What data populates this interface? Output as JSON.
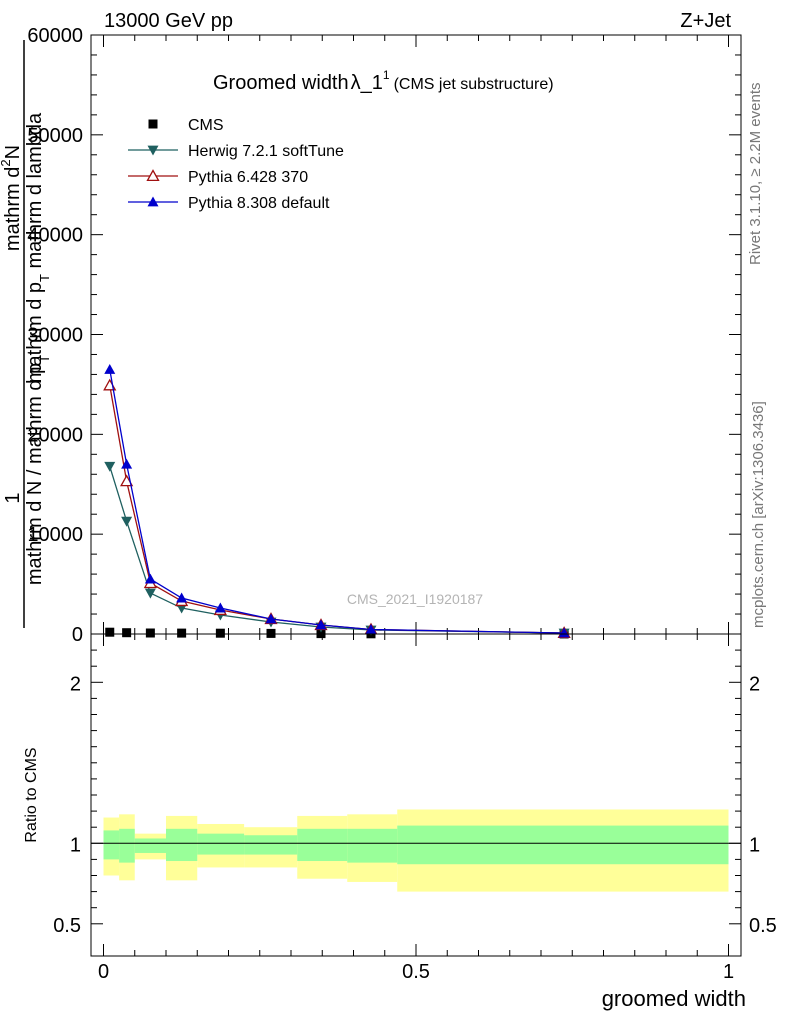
{
  "header": {
    "left": "13000 GeV pp",
    "right": "Z+Jet"
  },
  "title": {
    "main": "Groomed width",
    "lambda": "λ_1",
    "sup": "1",
    "sub": "(CMS jet substructure)"
  },
  "side_labels": {
    "rivet": "Rivet 3.1.10, ≥ 2.2M events",
    "mcplots": "mcplots.cern.ch [arXiv:1306.3436]"
  },
  "watermark": "CMS_2021_I1920187",
  "ylabel_main": {
    "num_line1": "mathrm d",
    "num_sup": "2",
    "num_line2": "N",
    "num_line3": "mathrm d p",
    "num_sub": "T",
    "num_line4": " mathrm d lambda",
    "den": "mathrm d N / mathrm d p",
    "den_sub": "T",
    "one": "1"
  },
  "chart_data": [
    {
      "type": "line",
      "panel": "main",
      "title": "Groomed width λ_1^1 (CMS jet substructure)",
      "xlabel": "",
      "ylabel": "1 / mathrm d N / mathrm d p_T · mathrm d^2N / mathrm d p_T mathrm d lambda",
      "xlim": [
        -0.02,
        1.02
      ],
      "ylim": [
        0,
        60000
      ],
      "yticks": [
        0,
        10000,
        20000,
        30000,
        40000,
        50000,
        60000
      ],
      "ytick_labels": [
        "0",
        "10000",
        "20000",
        "30000",
        "40000",
        "50000",
        "60000"
      ],
      "legend_placement": "top-left",
      "x": [
        0.01,
        0.037,
        0.075,
        0.125,
        0.187,
        0.268,
        0.348,
        0.428,
        0.737
      ],
      "series": [
        {
          "name": "CMS",
          "color": "#000000",
          "marker": "square",
          "values": [
            180,
            130,
            100,
            90,
            80,
            60,
            40,
            20,
            5
          ]
        },
        {
          "name": "Herwig 7.2.1 softTune",
          "color": "#1f6060",
          "marker": "triangle-down",
          "values": [
            16800,
            11300,
            4100,
            2600,
            1900,
            1200,
            700,
            400,
            100
          ]
        },
        {
          "name": "Pythia 6.428 370",
          "color": "#a01010",
          "marker": "triangle-up-open",
          "values": [
            24900,
            15300,
            5100,
            3300,
            2400,
            1500,
            900,
            450,
            100
          ]
        },
        {
          "name": "Pythia 8.308 default",
          "color": "#0000cc",
          "marker": "triangle-up",
          "values": [
            26500,
            17000,
            5500,
            3600,
            2600,
            1500,
            900,
            450,
            100
          ]
        }
      ]
    },
    {
      "type": "area",
      "panel": "ratio",
      "xlabel": "groomed width",
      "ylabel": "Ratio to CMS",
      "xlim": [
        -0.02,
        1.02
      ],
      "ylim": [
        0.3,
        2.3
      ],
      "yticks": [
        0.5,
        1,
        2
      ],
      "ytick_labels": [
        "0.5",
        "1",
        "2"
      ],
      "xticks": [
        0,
        0.5,
        1
      ],
      "xtick_labels": [
        "0",
        "0.5",
        "1"
      ],
      "reference_line": 1,
      "bands": {
        "edges": [
          0,
          0.025,
          0.05,
          0.1,
          0.15,
          0.225,
          0.31,
          0.39,
          0.47,
          1.0
        ],
        "outer_lo": [
          0.8,
          0.77,
          0.9,
          0.77,
          0.85,
          0.85,
          0.78,
          0.76,
          0.7
        ],
        "outer_hi": [
          1.16,
          1.18,
          1.06,
          1.17,
          1.12,
          1.1,
          1.17,
          1.18,
          1.21
        ],
        "inner_lo": [
          0.9,
          0.88,
          0.94,
          0.89,
          0.93,
          0.93,
          0.89,
          0.88,
          0.87
        ],
        "inner_hi": [
          1.08,
          1.09,
          1.03,
          1.09,
          1.06,
          1.05,
          1.09,
          1.09,
          1.11
        ],
        "outer_color": "#ffff99",
        "inner_color": "#99ff99"
      }
    }
  ]
}
